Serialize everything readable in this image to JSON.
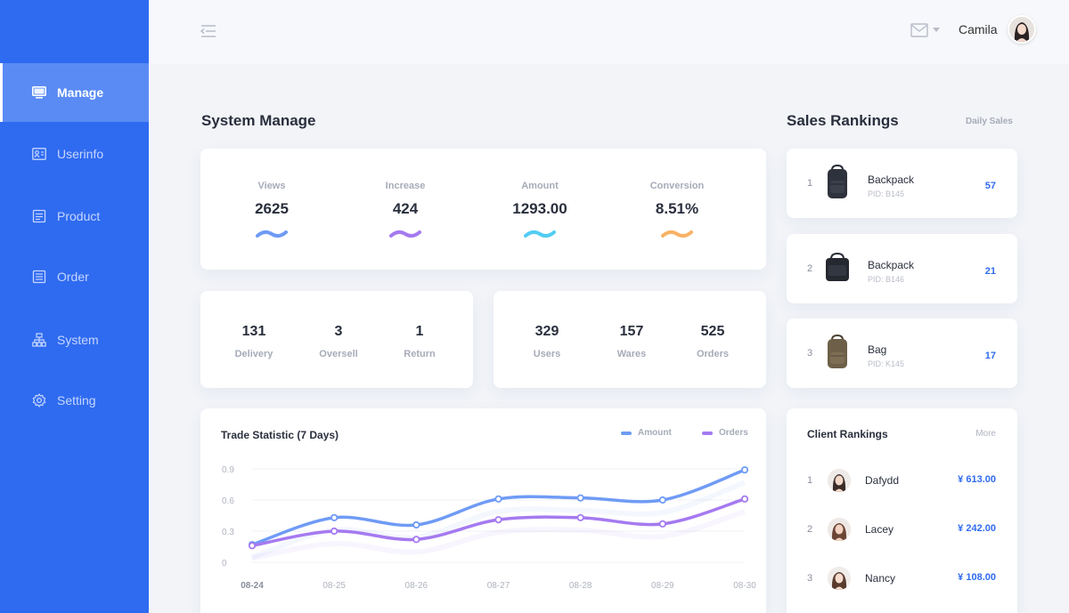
{
  "sidebar": {
    "items": [
      {
        "label": "Manage",
        "icon": "monitor-icon"
      },
      {
        "label": "Userinfo",
        "icon": "id-card-icon"
      },
      {
        "label": "Product",
        "icon": "document-icon"
      },
      {
        "label": "Order",
        "icon": "list-icon"
      },
      {
        "label": "System",
        "icon": "sitemap-icon"
      },
      {
        "label": "Setting",
        "icon": "gear-icon"
      }
    ],
    "active": "Manage"
  },
  "header": {
    "username": "Camila",
    "icons": [
      "menu-collapse-icon",
      "mail-icon",
      "caret-down-icon"
    ]
  },
  "system": {
    "title": "System Manage",
    "stats": [
      {
        "label": "Views",
        "value": "2625",
        "color": "#6f9bf5"
      },
      {
        "label": "Increase",
        "value": "424",
        "color": "#a57af0"
      },
      {
        "label": "Amount",
        "value": "1293.00",
        "color": "#52cdf3"
      },
      {
        "label": "Conversion",
        "value": "8.51%",
        "color": "#f8b267"
      }
    ],
    "group1": [
      {
        "value": "131",
        "label": "Delivery"
      },
      {
        "value": "3",
        "label": "Oversell"
      },
      {
        "value": "1",
        "label": "Return"
      }
    ],
    "group2": [
      {
        "value": "329",
        "label": "Users"
      },
      {
        "value": "157",
        "label": "Wares"
      },
      {
        "value": "525",
        "label": "Orders"
      }
    ]
  },
  "trade": {
    "title": "Trade Statistic (7 Days)",
    "legend": [
      {
        "name": "Amount",
        "color": "#6f9bf5"
      },
      {
        "name": "Orders",
        "color": "#a57af0"
      }
    ]
  },
  "chart_data": {
    "type": "line",
    "title": "Trade Statistic (7 Days)",
    "x": [
      "08-24",
      "08-25",
      "08-26",
      "08-27",
      "08-28",
      "08-29",
      "08-30"
    ],
    "yticks": [
      "0.9",
      "0.6",
      "0.3",
      "0"
    ],
    "ylim": [
      0,
      0.9
    ],
    "grid": true,
    "legend_position": "top-right",
    "series": [
      {
        "name": "Amount",
        "color": "#6f9bf5",
        "values": [
          0.17,
          0.43,
          0.36,
          0.61,
          0.62,
          0.6,
          0.89
        ]
      },
      {
        "name": "Orders",
        "color": "#a57af0",
        "values": [
          0.16,
          0.3,
          0.22,
          0.41,
          0.43,
          0.37,
          0.61
        ]
      }
    ]
  },
  "sales": {
    "title": "Sales Rankings",
    "tab": "Daily Sales",
    "items": [
      {
        "rank": "1",
        "name": "Backpack",
        "pid": "PID: B145",
        "count": "57"
      },
      {
        "rank": "2",
        "name": "Backpack",
        "pid": "PID: B146",
        "count": "21"
      },
      {
        "rank": "3",
        "name": "Bag",
        "pid": "PID: K145",
        "count": "17"
      }
    ]
  },
  "clients": {
    "title": "Client Rankings",
    "more": "More",
    "items": [
      {
        "rank": "1",
        "name": "Dafydd",
        "amount": "¥ 613.00"
      },
      {
        "rank": "2",
        "name": "Lacey",
        "amount": "¥ 242.00"
      },
      {
        "rank": "3",
        "name": "Nancy",
        "amount": "¥ 108.00"
      }
    ]
  }
}
